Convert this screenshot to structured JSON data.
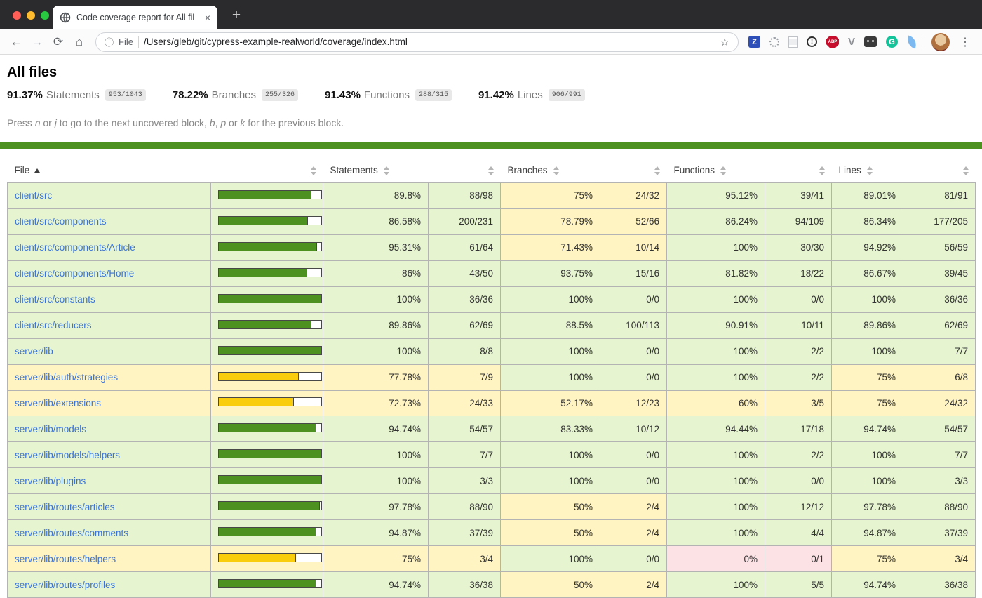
{
  "browser": {
    "traffic_lights": [
      "#ff5f57",
      "#febc2e",
      "#28c840"
    ],
    "tab": {
      "title": "Code coverage report for All fil",
      "close_glyph": "×",
      "new_tab_glyph": "+"
    },
    "toolbar": {
      "back_glyph": "←",
      "forward_glyph": "→",
      "reload_glyph": "⟳",
      "home_glyph": "⌂",
      "info_glyph": "ⓘ",
      "scheme_label": "File",
      "url": "/Users/gleb/git/cypress-example-realworld/coverage/index.html",
      "star_glyph": "☆",
      "kebab_glyph": "⋮",
      "extensions": [
        {
          "name": "zotero-icon",
          "letter": "Z",
          "style": "square-badge",
          "bg": "#2e4eb8",
          "fg": "#ffffff"
        },
        {
          "name": "dotted-circle-icon",
          "style": "dotted-circle"
        },
        {
          "name": "page-icon",
          "style": "page"
        },
        {
          "name": "alert-icon",
          "letter": "!",
          "style": "ring-badge"
        },
        {
          "name": "adblock-plus-icon",
          "letter": "ABP",
          "style": "octagon-badge",
          "bg": "#c70d2c",
          "fg": "#ffffff"
        },
        {
          "name": "vimium-icon",
          "letter": "V",
          "style": "letter",
          "fg": "#8d9196"
        },
        {
          "name": "bot-icon",
          "style": "bot"
        },
        {
          "name": "grammarly-icon",
          "letter": "G",
          "style": "circle-badge",
          "bg": "#15c39a",
          "fg": "#ffffff"
        },
        {
          "name": "feather-icon",
          "style": "feather"
        }
      ]
    }
  },
  "page": {
    "title": "All files",
    "summary": [
      {
        "pct": "91.37%",
        "label": "Statements",
        "fraction": "953/1043"
      },
      {
        "pct": "78.22%",
        "label": "Branches",
        "fraction": "255/326"
      },
      {
        "pct": "91.43%",
        "label": "Functions",
        "fraction": "288/315"
      },
      {
        "pct": "91.42%",
        "label": "Lines",
        "fraction": "906/991"
      }
    ],
    "hint_segments": [
      {
        "text": "Press "
      },
      {
        "text": "n",
        "em": true
      },
      {
        "text": " or "
      },
      {
        "text": "j",
        "em": true
      },
      {
        "text": " to go to the next uncovered block, "
      },
      {
        "text": "b",
        "em": true
      },
      {
        "text": ", "
      },
      {
        "text": "p",
        "em": true
      },
      {
        "text": " or "
      },
      {
        "text": "k",
        "em": true
      },
      {
        "text": " for the previous block."
      }
    ],
    "table": {
      "columns": [
        "File",
        "",
        "Statements",
        "",
        "Branches",
        "",
        "Functions",
        "",
        "Lines",
        ""
      ],
      "metric_keys": [
        "statements",
        "branches",
        "functions",
        "lines"
      ],
      "rows": [
        {
          "file": "client/src",
          "bar": 89.8,
          "level": "high",
          "metrics": [
            {
              "pct": "89.8%",
              "abs": "88/98",
              "level": "high"
            },
            {
              "pct": "75%",
              "abs": "24/32",
              "level": "medium"
            },
            {
              "pct": "95.12%",
              "abs": "39/41",
              "level": "high"
            },
            {
              "pct": "89.01%",
              "abs": "81/91",
              "level": "high"
            }
          ]
        },
        {
          "file": "client/src/components",
          "bar": 86.58,
          "level": "high",
          "metrics": [
            {
              "pct": "86.58%",
              "abs": "200/231",
              "level": "high"
            },
            {
              "pct": "78.79%",
              "abs": "52/66",
              "level": "medium"
            },
            {
              "pct": "86.24%",
              "abs": "94/109",
              "level": "high"
            },
            {
              "pct": "86.34%",
              "abs": "177/205",
              "level": "high"
            }
          ]
        },
        {
          "file": "client/src/components/Article",
          "bar": 95.31,
          "level": "high",
          "metrics": [
            {
              "pct": "95.31%",
              "abs": "61/64",
              "level": "high"
            },
            {
              "pct": "71.43%",
              "abs": "10/14",
              "level": "medium"
            },
            {
              "pct": "100%",
              "abs": "30/30",
              "level": "high"
            },
            {
              "pct": "94.92%",
              "abs": "56/59",
              "level": "high"
            }
          ]
        },
        {
          "file": "client/src/components/Home",
          "bar": 86,
          "level": "high",
          "metrics": [
            {
              "pct": "86%",
              "abs": "43/50",
              "level": "high"
            },
            {
              "pct": "93.75%",
              "abs": "15/16",
              "level": "high"
            },
            {
              "pct": "81.82%",
              "abs": "18/22",
              "level": "high"
            },
            {
              "pct": "86.67%",
              "abs": "39/45",
              "level": "high"
            }
          ]
        },
        {
          "file": "client/src/constants",
          "bar": 100,
          "level": "high",
          "metrics": [
            {
              "pct": "100%",
              "abs": "36/36",
              "level": "high"
            },
            {
              "pct": "100%",
              "abs": "0/0",
              "level": "high"
            },
            {
              "pct": "100%",
              "abs": "0/0",
              "level": "high"
            },
            {
              "pct": "100%",
              "abs": "36/36",
              "level": "high"
            }
          ]
        },
        {
          "file": "client/src/reducers",
          "bar": 89.86,
          "level": "high",
          "metrics": [
            {
              "pct": "89.86%",
              "abs": "62/69",
              "level": "high"
            },
            {
              "pct": "88.5%",
              "abs": "100/113",
              "level": "high"
            },
            {
              "pct": "90.91%",
              "abs": "10/11",
              "level": "high"
            },
            {
              "pct": "89.86%",
              "abs": "62/69",
              "level": "high"
            }
          ]
        },
        {
          "file": "server/lib",
          "bar": 100,
          "level": "high",
          "metrics": [
            {
              "pct": "100%",
              "abs": "8/8",
              "level": "high"
            },
            {
              "pct": "100%",
              "abs": "0/0",
              "level": "high"
            },
            {
              "pct": "100%",
              "abs": "2/2",
              "level": "high"
            },
            {
              "pct": "100%",
              "abs": "7/7",
              "level": "high"
            }
          ]
        },
        {
          "file": "server/lib/auth/strategies",
          "bar": 77.78,
          "level": "medium",
          "metrics": [
            {
              "pct": "77.78%",
              "abs": "7/9",
              "level": "medium"
            },
            {
              "pct": "100%",
              "abs": "0/0",
              "level": "high"
            },
            {
              "pct": "100%",
              "abs": "2/2",
              "level": "high"
            },
            {
              "pct": "75%",
              "abs": "6/8",
              "level": "medium"
            }
          ]
        },
        {
          "file": "server/lib/extensions",
          "bar": 72.73,
          "level": "medium",
          "metrics": [
            {
              "pct": "72.73%",
              "abs": "24/33",
              "level": "medium"
            },
            {
              "pct": "52.17%",
              "abs": "12/23",
              "level": "medium"
            },
            {
              "pct": "60%",
              "abs": "3/5",
              "level": "medium"
            },
            {
              "pct": "75%",
              "abs": "24/32",
              "level": "medium"
            }
          ]
        },
        {
          "file": "server/lib/models",
          "bar": 94.74,
          "level": "high",
          "metrics": [
            {
              "pct": "94.74%",
              "abs": "54/57",
              "level": "high"
            },
            {
              "pct": "83.33%",
              "abs": "10/12",
              "level": "high"
            },
            {
              "pct": "94.44%",
              "abs": "17/18",
              "level": "high"
            },
            {
              "pct": "94.74%",
              "abs": "54/57",
              "level": "high"
            }
          ]
        },
        {
          "file": "server/lib/models/helpers",
          "bar": 100,
          "level": "high",
          "metrics": [
            {
              "pct": "100%",
              "abs": "7/7",
              "level": "high"
            },
            {
              "pct": "100%",
              "abs": "0/0",
              "level": "high"
            },
            {
              "pct": "100%",
              "abs": "2/2",
              "level": "high"
            },
            {
              "pct": "100%",
              "abs": "7/7",
              "level": "high"
            }
          ]
        },
        {
          "file": "server/lib/plugins",
          "bar": 100,
          "level": "high",
          "metrics": [
            {
              "pct": "100%",
              "abs": "3/3",
              "level": "high"
            },
            {
              "pct": "100%",
              "abs": "0/0",
              "level": "high"
            },
            {
              "pct": "100%",
              "abs": "0/0",
              "level": "high"
            },
            {
              "pct": "100%",
              "abs": "3/3",
              "level": "high"
            }
          ]
        },
        {
          "file": "server/lib/routes/articles",
          "bar": 97.78,
          "level": "high",
          "metrics": [
            {
              "pct": "97.78%",
              "abs": "88/90",
              "level": "high"
            },
            {
              "pct": "50%",
              "abs": "2/4",
              "level": "medium"
            },
            {
              "pct": "100%",
              "abs": "12/12",
              "level": "high"
            },
            {
              "pct": "97.78%",
              "abs": "88/90",
              "level": "high"
            }
          ]
        },
        {
          "file": "server/lib/routes/comments",
          "bar": 94.87,
          "level": "high",
          "metrics": [
            {
              "pct": "94.87%",
              "abs": "37/39",
              "level": "high"
            },
            {
              "pct": "50%",
              "abs": "2/4",
              "level": "medium"
            },
            {
              "pct": "100%",
              "abs": "4/4",
              "level": "high"
            },
            {
              "pct": "94.87%",
              "abs": "37/39",
              "level": "high"
            }
          ]
        },
        {
          "file": "server/lib/routes/helpers",
          "bar": 75,
          "level": "medium",
          "metrics": [
            {
              "pct": "75%",
              "abs": "3/4",
              "level": "medium"
            },
            {
              "pct": "100%",
              "abs": "0/0",
              "level": "high"
            },
            {
              "pct": "0%",
              "abs": "0/1",
              "level": "low"
            },
            {
              "pct": "75%",
              "abs": "3/4",
              "level": "medium"
            }
          ]
        },
        {
          "file": "server/lib/routes/profiles",
          "bar": 94.74,
          "level": "high",
          "metrics": [
            {
              "pct": "94.74%",
              "abs": "36/38",
              "level": "high"
            },
            {
              "pct": "50%",
              "abs": "2/4",
              "level": "medium"
            },
            {
              "pct": "100%",
              "abs": "5/5",
              "level": "high"
            },
            {
              "pct": "94.74%",
              "abs": "36/38",
              "level": "high"
            }
          ]
        }
      ]
    }
  },
  "colors": {
    "status_line": "#4d9221",
    "high_bg": "#e6f5d0",
    "medium_bg": "#fff4c2",
    "low_bg": "#fce1e5",
    "bar_high": "#4d9221",
    "bar_medium": "#f9cd0b",
    "bar_low": "#c21f39",
    "link": "#3a73d9"
  }
}
